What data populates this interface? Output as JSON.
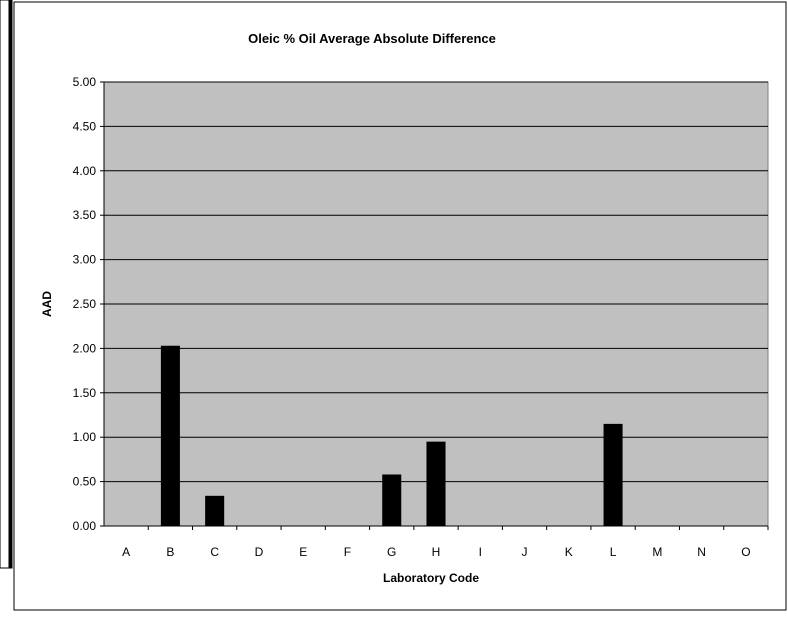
{
  "chart_data": {
    "type": "bar",
    "title": "Oleic % Oil Average Absolute Difference",
    "xlabel": "Laboratory Code",
    "ylabel": "AAD",
    "categories": [
      "A",
      "B",
      "C",
      "D",
      "E",
      "F",
      "G",
      "H",
      "I",
      "J",
      "K",
      "L",
      "M",
      "N",
      "O"
    ],
    "values": [
      0,
      2.03,
      0.34,
      0,
      0,
      0,
      0.58,
      0.95,
      0,
      0,
      0,
      1.15,
      0,
      0,
      0
    ],
    "ylim": [
      0,
      5
    ],
    "yticks": [
      "0.00",
      "0.50",
      "1.00",
      "1.50",
      "2.00",
      "2.50",
      "3.00",
      "3.50",
      "4.00",
      "4.50",
      "5.00"
    ],
    "grid": true,
    "legend": "none",
    "colors": {
      "plot_background": "#c0c0c0",
      "bar": "#000000",
      "gridline": "#000000"
    }
  }
}
